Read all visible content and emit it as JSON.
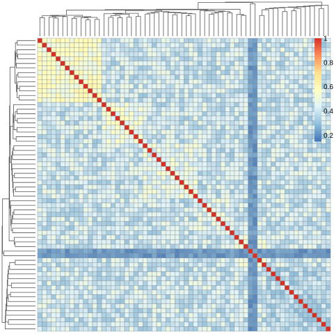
{
  "chart_data": {
    "type": "heatmap",
    "title": "",
    "xlabel": "",
    "ylabel": "",
    "n": 64,
    "value_range": [
      0.15,
      1.0
    ],
    "colorbar": {
      "ticks": [
        "1",
        "0.8",
        "0.6",
        "0.4",
        "0.2"
      ],
      "tick_values": [
        1.0,
        0.8,
        0.6,
        0.4,
        0.2
      ],
      "colors": [
        "#4575b4",
        "#91bfdb",
        "#e0f3f8",
        "#ffffbf",
        "#fee090",
        "#fc8d59",
        "#d73027"
      ],
      "placement": "right"
    },
    "cluster_groups": [
      {
        "size": 14,
        "base": 0.55
      },
      {
        "size": 9,
        "base": 0.5
      },
      {
        "size": 12,
        "base": 0.47
      },
      {
        "size": 8,
        "base": 0.44
      },
      {
        "size": 7,
        "base": 0.47
      },
      {
        "size": 14,
        "base": 0.36
      }
    ],
    "between_group_level": 0.4,
    "outlier_rows_cols": [
      46,
      47
    ],
    "outlier_level": 0.22,
    "diagonal_value": 1.0,
    "dendrograms": {
      "top": true,
      "left": true
    },
    "grid": true
  }
}
